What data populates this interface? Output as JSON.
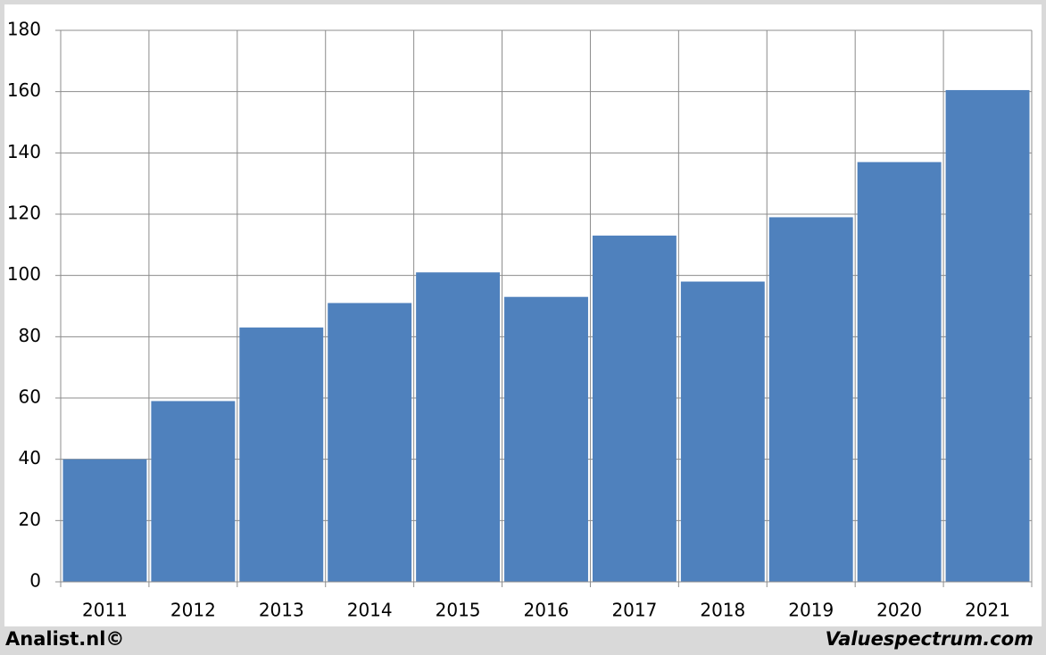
{
  "chart_data": {
    "type": "bar",
    "categories": [
      "2011",
      "2012",
      "2013",
      "2014",
      "2015",
      "2016",
      "2017",
      "2018",
      "2019",
      "2020",
      "2021"
    ],
    "values": [
      40,
      59,
      83,
      91,
      101,
      93,
      113,
      98,
      119,
      137,
      160.5
    ],
    "color": "#4f81bd",
    "ylim": [
      0,
      180
    ],
    "yticks": [
      0,
      20,
      40,
      60,
      80,
      100,
      120,
      140,
      160,
      180
    ],
    "grid": true
  },
  "footer": {
    "left": "Analist.nl©",
    "right": "Valuespectrum.com"
  }
}
